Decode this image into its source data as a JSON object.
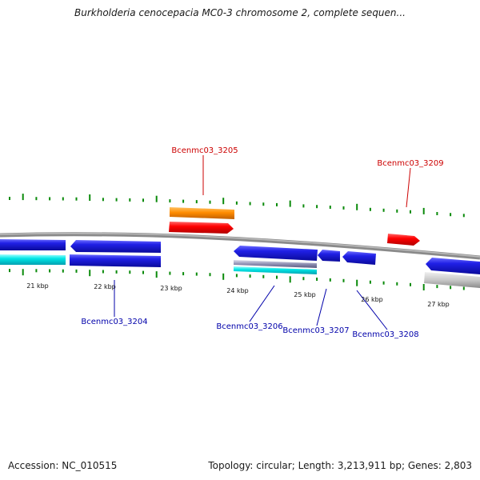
{
  "title": "Burkholderia cenocepacia MC0-3 chromosome 2, complete sequen...",
  "footer": {
    "accession_label": "Accession:",
    "accession_value": "NC_010515",
    "topology_label": "Topology:",
    "topology_value": "circular",
    "length_label": "Length:",
    "length_value": "3,213,911 bp",
    "genes_label": "Genes:",
    "genes_value": "2,803"
  },
  "ruler": {
    "unit": "kbp",
    "labels": [
      "21 kbp",
      "22 kbp",
      "23 kbp",
      "24 kbp",
      "25 kbp",
      "26 kbp",
      "27 kbp"
    ]
  },
  "colors": {
    "forward_gene": "#ff0000",
    "forward_gene_alt": "#ff8c00",
    "reverse_gene": "#1e1ed2",
    "reverse_gene_alt": "#00e6e6",
    "rna_feature": "#b4b4c8",
    "pseudo_gene": "#c8c8c8",
    "backbone": "#888888",
    "tick": "#0a8a0a",
    "forward_label": "#cc0000",
    "reverse_label": "#0000aa"
  },
  "gene_labels": [
    {
      "name": "Bcenmc03_3205",
      "strand": "forward"
    },
    {
      "name": "Bcenmc03_3209",
      "strand": "forward"
    },
    {
      "name": "Bcenmc03_3204",
      "strand": "reverse"
    },
    {
      "name": "Bcenmc03_3206",
      "strand": "reverse"
    },
    {
      "name": "Bcenmc03_3207",
      "strand": "reverse"
    },
    {
      "name": "Bcenmc03_3208",
      "strand": "reverse"
    }
  ]
}
